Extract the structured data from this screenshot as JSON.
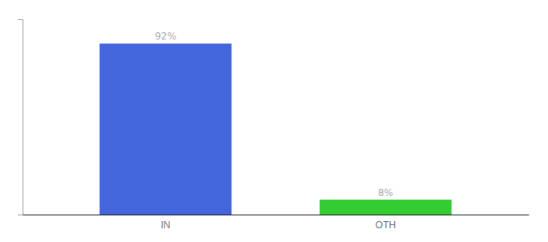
{
  "chart_data": {
    "type": "bar",
    "categories": [
      "IN",
      "OTH"
    ],
    "values": [
      92,
      8
    ],
    "value_labels": [
      "92%",
      "8%"
    ],
    "colors": [
      "#4466dd",
      "#33cc33"
    ],
    "ylim": [
      0,
      105
    ],
    "yticks": [],
    "grid": false,
    "data_labels": true,
    "tick_labels": "x"
  }
}
